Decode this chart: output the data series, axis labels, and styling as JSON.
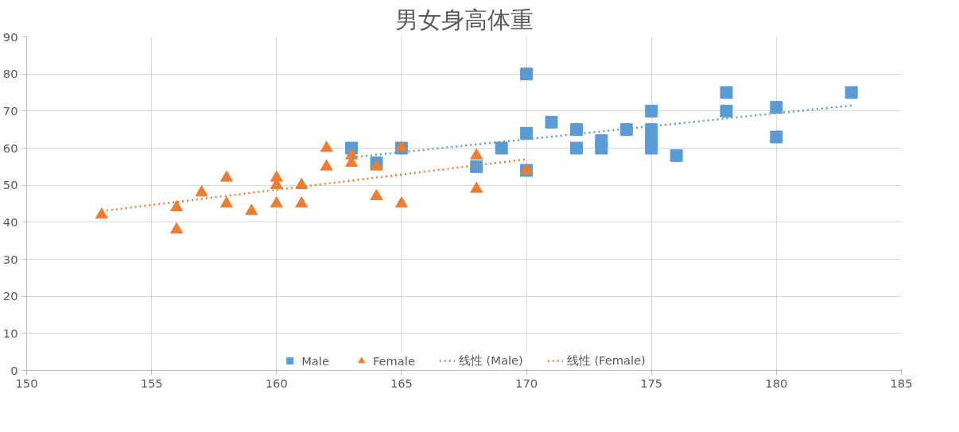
{
  "chart_data": {
    "type": "scatter",
    "title": "男女身高体重",
    "xlim": [
      150,
      185
    ],
    "xticks": [
      150,
      155,
      160,
      165,
      170,
      175,
      180,
      185
    ],
    "ylim": [
      0,
      90
    ],
    "yticks": [
      0,
      10,
      20,
      30,
      40,
      50,
      60,
      70,
      80,
      90
    ],
    "grid": true,
    "legend": "bottom",
    "series": [
      {
        "name": "Male",
        "type": "scatter",
        "marker": "square",
        "color": "#5b9bd5",
        "x": [
          163,
          164,
          165,
          168,
          169,
          170,
          170,
          170,
          171,
          172,
          172,
          173,
          173,
          174,
          175,
          175,
          175,
          175,
          176,
          178,
          178,
          180,
          180,
          183
        ],
        "values": [
          60,
          56,
          60,
          55,
          60,
          80,
          64,
          54,
          67,
          65,
          60,
          62,
          60,
          65,
          70,
          65,
          62,
          60,
          58,
          75,
          70,
          71,
          63,
          75
        ]
      },
      {
        "name": "Female",
        "type": "scatter",
        "marker": "triangle",
        "color": "#ed7d31",
        "x": [
          153,
          156,
          156,
          157,
          158,
          158,
          159,
          160,
          160,
          160,
          161,
          161,
          162,
          162,
          163,
          163,
          164,
          164,
          165,
          165,
          168,
          168,
          170
        ],
        "values": [
          42,
          44,
          38,
          48,
          52,
          45,
          43,
          52,
          50,
          45,
          50,
          45,
          60,
          55,
          58,
          56,
          55,
          47,
          60,
          45,
          58,
          49,
          54
        ]
      },
      {
        "name": "线性 (Male)",
        "type": "line",
        "line_style": "dotted",
        "color": "#5b9bd5",
        "x": [
          163,
          183
        ],
        "values": [
          57.5,
          71.5
        ]
      },
      {
        "name": "线性 (Female)",
        "type": "line",
        "line_style": "dotted",
        "color": "#ed7d31",
        "x": [
          153,
          170
        ],
        "values": [
          43,
          57
        ]
      }
    ]
  }
}
